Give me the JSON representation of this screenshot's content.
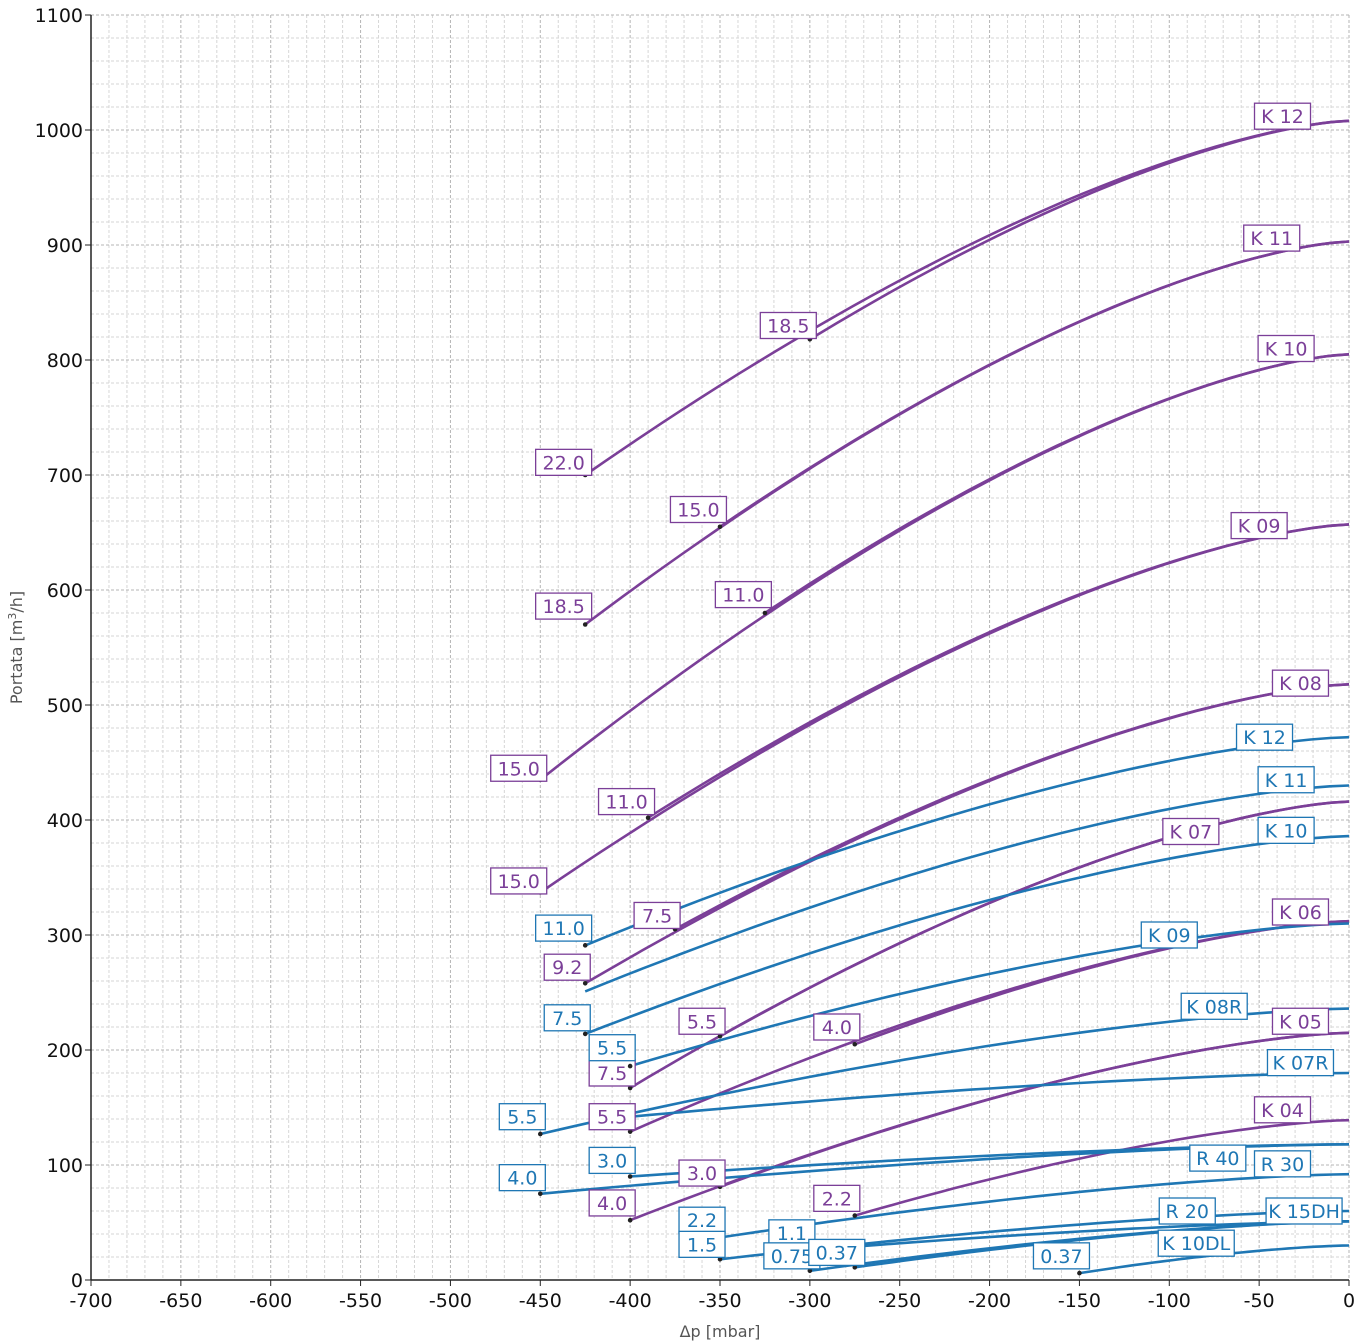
{
  "chart_data": {
    "type": "line",
    "xlabel": "Δp [mbar]",
    "ylabel_main": "Portata [m",
    "ylabel_sup": "3",
    "ylabel_tail": "/h]",
    "xlim": [
      -700,
      0
    ],
    "ylim": [
      0,
      1100
    ],
    "x_ticks": [
      -700,
      -650,
      -600,
      -550,
      -500,
      -450,
      -400,
      -350,
      -300,
      -250,
      -200,
      -150,
      -100,
      -50,
      0
    ],
    "y_ticks": [
      0,
      100,
      200,
      300,
      400,
      500,
      600,
      700,
      800,
      900,
      1000,
      1100
    ],
    "grid": true,
    "colors": {
      "purple": "#7b3f98",
      "blue": "#1f77b4"
    },
    "series": [
      {
        "name": "K 12",
        "color": "purple",
        "x_start": -425,
        "y_start": 700,
        "y_end": 1008,
        "start_label": "22.0"
      },
      {
        "name": "K 12",
        "color": "purple",
        "x_start": -300,
        "y_start": 818,
        "y_end": 1008,
        "start_label": "18.5"
      },
      {
        "name": "K 11",
        "color": "purple",
        "x_start": -425,
        "y_start": 570,
        "y_end": 903,
        "start_label": "18.5"
      },
      {
        "name": "K 11",
        "color": "purple",
        "x_start": -350,
        "y_start": 655,
        "y_end": 903,
        "start_label": "15.0"
      },
      {
        "name": "K 10",
        "color": "purple",
        "x_start": -450,
        "y_start": 435,
        "y_end": 805,
        "start_label": "15.0"
      },
      {
        "name": "K 10",
        "color": "purple",
        "x_start": -325,
        "y_start": 580,
        "y_end": 805,
        "start_label": "11.0"
      },
      {
        "name": "K 09",
        "color": "purple",
        "x_start": -450,
        "y_start": 337,
        "y_end": 657,
        "start_label": "15.0"
      },
      {
        "name": "K 09",
        "color": "purple",
        "x_start": -390,
        "y_start": 402,
        "y_end": 657,
        "start_label": "11.0"
      },
      {
        "name": "K 08",
        "color": "purple",
        "x_start": -425,
        "y_start": 258,
        "y_end": 518,
        "start_label": "9.2"
      },
      {
        "name": "K 08",
        "color": "purple",
        "x_start": -375,
        "y_start": 305,
        "y_end": 518,
        "start_label": "7.5"
      },
      {
        "name": "K 07",
        "color": "purple",
        "x_start": -400,
        "y_start": 167,
        "y_end": 416,
        "start_label": "7.5"
      },
      {
        "name": "K 07",
        "color": "purple",
        "x_start": -350,
        "y_start": 212,
        "y_end": 416,
        "start_label": "5.5"
      },
      {
        "name": "K 06",
        "color": "purple",
        "x_start": -400,
        "y_start": 129,
        "y_end": 312,
        "start_label": "5.5"
      },
      {
        "name": "K 06",
        "color": "purple",
        "x_start": -275,
        "y_start": 205,
        "y_end": 312,
        "start_label": "4.0"
      },
      {
        "name": "K 05",
        "color": "purple",
        "x_start": -400,
        "y_start": 52,
        "y_end": 215,
        "start_label": "4.0"
      },
      {
        "name": "K 05",
        "color": "purple",
        "x_start": -350,
        "y_start": 81,
        "y_end": 215,
        "start_label": "3.0"
      },
      {
        "name": "K 04",
        "color": "purple",
        "x_start": -275,
        "y_start": 56,
        "y_end": 139,
        "start_label": "2.2"
      },
      {
        "name": "K 12",
        "color": "blue",
        "x_start": -425,
        "y_start": 291,
        "y_end": 472,
        "start_label": "11.0"
      },
      {
        "name": "K 11",
        "color": "blue",
        "x_start": -425,
        "y_start": 251,
        "y_end": 430,
        "start_label": "9.2"
      },
      {
        "name": "K 10",
        "color": "blue",
        "x_start": -425,
        "y_start": 214,
        "y_end": 386,
        "start_label": "7.5"
      },
      {
        "name": "K 09",
        "color": "blue",
        "x_start": -400,
        "y_start": 186,
        "y_end": 310,
        "start_label": "5.5"
      },
      {
        "name": "K 08R",
        "color": "blue",
        "x_start": -450,
        "y_start": 127,
        "y_end": 236,
        "start_label": "5.5"
      },
      {
        "name": "K 07R",
        "color": "blue",
        "x_start": -400,
        "y_start": 142,
        "y_end": 180,
        "start_label": "4.0"
      },
      {
        "name": "R 40",
        "color": "blue",
        "x_start": -450,
        "y_start": 75,
        "y_end": 118,
        "start_label": "4.0"
      },
      {
        "name": "R 40",
        "color": "blue",
        "x_start": -400,
        "y_start": 90,
        "y_end": 118,
        "start_label": "3.0"
      },
      {
        "name": "R 30",
        "color": "blue",
        "x_start": -350,
        "y_start": 37,
        "y_end": 92,
        "start_label": "2.2"
      },
      {
        "name": "R 20",
        "color": "blue",
        "x_start": -350,
        "y_start": 18,
        "y_end": 60,
        "start_label": "1.5"
      },
      {
        "name": "K 15DH",
        "color": "blue",
        "x_start": -300,
        "y_start": 26,
        "y_end": 51,
        "start_label": "1.1"
      },
      {
        "name": "K 15DH",
        "color": "blue",
        "x_start": -300,
        "y_start": 8,
        "y_end": 51,
        "start_label": "0.75"
      },
      {
        "name": "K 15DH",
        "color": "blue",
        "x_start": -275,
        "y_start": 11,
        "y_end": 51,
        "start_label": "0.37"
      },
      {
        "name": "K 10DL",
        "color": "blue",
        "x_start": -150,
        "y_start": 6,
        "y_end": 30,
        "start_label": "0.37"
      }
    ],
    "labels": [
      {
        "text": "K 12",
        "color": "purple",
        "x": -37,
        "y": 1012,
        "point": null
      },
      {
        "text": "K 11",
        "color": "purple",
        "x": -43,
        "y": 906,
        "point": null
      },
      {
        "text": "K 10",
        "color": "purple",
        "x": -35,
        "y": 810,
        "point": null
      },
      {
        "text": "K 09",
        "color": "purple",
        "x": -50,
        "y": 656,
        "point": null
      },
      {
        "text": "K 08",
        "color": "purple",
        "x": -27,
        "y": 519,
        "point": null
      },
      {
        "text": "K 07",
        "color": "purple",
        "x": -88,
        "y": 390,
        "point": null
      },
      {
        "text": "K 06",
        "color": "purple",
        "x": -27,
        "y": 320,
        "point": null
      },
      {
        "text": "K 05",
        "color": "purple",
        "x": -27,
        "y": 225,
        "point": null
      },
      {
        "text": "K 04",
        "color": "purple",
        "x": -37,
        "y": 148,
        "point": null
      },
      {
        "text": "18.5",
        "color": "purple",
        "x": -312,
        "y": 830,
        "point": [
          -300,
          818
        ]
      },
      {
        "text": "22.0",
        "color": "purple",
        "x": -437,
        "y": 711,
        "point": [
          -425,
          700
        ]
      },
      {
        "text": "15.0",
        "color": "purple",
        "x": -362,
        "y": 670,
        "point": [
          -350,
          655
        ]
      },
      {
        "text": "18.5",
        "color": "purple",
        "x": -437,
        "y": 586,
        "point": [
          -425,
          570
        ]
      },
      {
        "text": "11.0",
        "color": "purple",
        "x": -337,
        "y": 596,
        "point": [
          -325,
          580
        ]
      },
      {
        "text": "15.0",
        "color": "purple",
        "x": -462,
        "y": 445,
        "point": [
          -450,
          435
        ]
      },
      {
        "text": "11.0",
        "color": "purple",
        "x": -402,
        "y": 416,
        "point": [
          -390,
          402
        ]
      },
      {
        "text": "15.0",
        "color": "purple",
        "x": -462,
        "y": 347,
        "point": [
          -450,
          337
        ]
      },
      {
        "text": "7.5",
        "color": "purple",
        "x": -385,
        "y": 317,
        "point": [
          -375,
          305
        ]
      },
      {
        "text": "9.2",
        "color": "purple",
        "x": -435,
        "y": 272,
        "point": [
          -425,
          258
        ]
      },
      {
        "text": "5.5",
        "color": "purple",
        "x": -360,
        "y": 225,
        "point": [
          -350,
          212
        ]
      },
      {
        "text": "4.0",
        "color": "purple",
        "x": -285,
        "y": 220,
        "point": [
          -275,
          205
        ]
      },
      {
        "text": "7.5",
        "color": "purple",
        "x": -410,
        "y": 180,
        "point": [
          -400,
          167
        ]
      },
      {
        "text": "5.5",
        "color": "purple",
        "x": -410,
        "y": 142,
        "point": [
          -400,
          129
        ]
      },
      {
        "text": "3.0",
        "color": "purple",
        "x": -360,
        "y": 93,
        "point": [
          -350,
          81
        ]
      },
      {
        "text": "4.0",
        "color": "purple",
        "x": -410,
        "y": 67,
        "point": [
          -400,
          52
        ]
      },
      {
        "text": "2.2",
        "color": "purple",
        "x": -285,
        "y": 71,
        "point": [
          -275,
          56
        ]
      },
      {
        "text": "K 12",
        "color": "blue",
        "x": -47,
        "y": 472,
        "point": null
      },
      {
        "text": "K 11",
        "color": "blue",
        "x": -35,
        "y": 435,
        "point": null
      },
      {
        "text": "K 10",
        "color": "blue",
        "x": -35,
        "y": 391,
        "point": null
      },
      {
        "text": "K 09",
        "color": "blue",
        "x": -100,
        "y": 300,
        "point": null
      },
      {
        "text": "K 08R",
        "color": "blue",
        "x": -75,
        "y": 238,
        "point": null
      },
      {
        "text": "K 07R",
        "color": "blue",
        "x": -27,
        "y": 189,
        "point": null
      },
      {
        "text": "R 40",
        "color": "blue",
        "x": -73,
        "y": 106,
        "point": null
      },
      {
        "text": "R 30",
        "color": "blue",
        "x": -37,
        "y": 101,
        "point": null
      },
      {
        "text": "R 20",
        "color": "blue",
        "x": -90,
        "y": 60,
        "point": null
      },
      {
        "text": "K 15DH",
        "color": "blue",
        "x": -25,
        "y": 60,
        "point": null
      },
      {
        "text": "K 10DL",
        "color": "blue",
        "x": -85,
        "y": 32,
        "point": null
      },
      {
        "text": "11.0",
        "color": "blue",
        "x": -437,
        "y": 306,
        "point": [
          -425,
          291
        ]
      },
      {
        "text": "7.5",
        "color": "blue",
        "x": -435,
        "y": 228,
        "point": [
          -425,
          214
        ]
      },
      {
        "text": "5.5",
        "color": "blue",
        "x": -410,
        "y": 202,
        "point": [
          -400,
          186
        ]
      },
      {
        "text": "5.5",
        "color": "blue",
        "x": -460,
        "y": 142,
        "point": [
          -450,
          127
        ]
      },
      {
        "text": "4.0",
        "color": "blue",
        "x": -460,
        "y": 89,
        "point": [
          -450,
          75
        ]
      },
      {
        "text": "3.0",
        "color": "blue",
        "x": -410,
        "y": 104,
        "point": [
          -400,
          90
        ]
      },
      {
        "text": "2.2",
        "color": "blue",
        "x": -360,
        "y": 52,
        "point": [
          -350,
          37
        ]
      },
      {
        "text": "1.5",
        "color": "blue",
        "x": -360,
        "y": 31,
        "point": [
          -350,
          18
        ]
      },
      {
        "text": "1.1",
        "color": "blue",
        "x": -310,
        "y": 41,
        "point": [
          -300,
          26
        ]
      },
      {
        "text": "0.75",
        "color": "blue",
        "x": -310,
        "y": 21,
        "point": [
          -300,
          8
        ]
      },
      {
        "text": "0.37",
        "color": "blue",
        "x": -285,
        "y": 24,
        "point": [
          -275,
          11
        ]
      },
      {
        "text": "0.37",
        "color": "blue",
        "x": -160,
        "y": 21,
        "point": [
          -150,
          6
        ]
      }
    ]
  }
}
